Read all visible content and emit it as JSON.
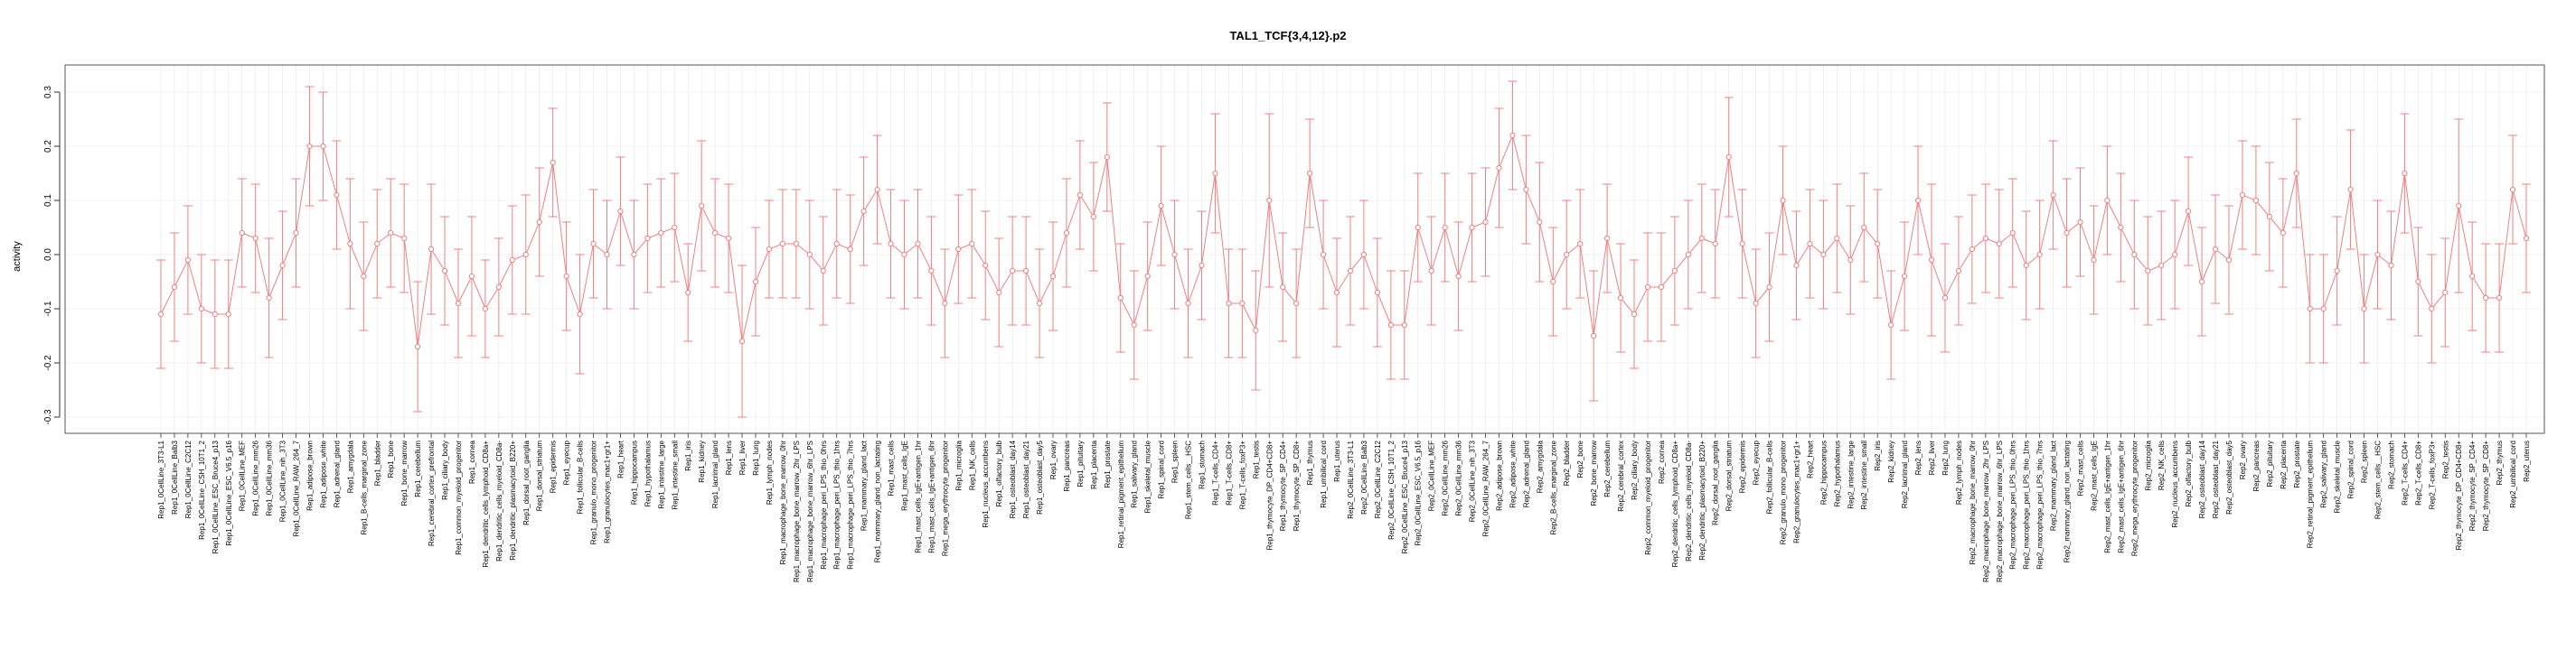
{
  "chart_data": {
    "type": "line",
    "title": "TAL1_TCF{3,4,12}.p2",
    "xlabel": "",
    "ylabel": "activity",
    "ylim": [
      -0.33,
      0.35
    ],
    "yticks": [
      -0.3,
      -0.2,
      -0.1,
      0.0,
      0.1,
      0.2,
      0.3
    ],
    "ytick_labels": [
      "-0.3",
      "-0.2",
      "-0.1",
      "0.0",
      "0.1",
      "0.2",
      "0.3"
    ],
    "grid": true,
    "error_bars": true,
    "colors": {
      "series": "#f08080",
      "frame": "#555555",
      "grid": "#e6e6e6"
    },
    "categories": [
      "Rep1_0CellLine_3T3-L1",
      "Rep1_0CellLine_Balb3",
      "Rep1_0CellLine_C2C12",
      "Rep1_0CellLine_CSH_10T1_2",
      "Rep1_0CellLine_ESC_Bruce4_p13",
      "Rep1_0CellLine_ESC_V6.5_p16",
      "Rep1_0CellLine_MEF",
      "Rep1_0CellLine_mm26",
      "Rep1_0CellLine_mm36",
      "Rep1_0CellLine_nih_3T3",
      "Rep1_0CellLine_RAW_264_7",
      "Rep1_adipose_brown",
      "Rep1_adipose_white",
      "Rep1_adrenal_gland",
      "Rep1_amygdala",
      "Rep1_B-cells_marginal_zone",
      "Rep1_bladder",
      "Rep1_bone",
      "Rep1_bone_marrow",
      "Rep1_cerebellum",
      "Rep1_cerebral_cortex_prefrontal",
      "Rep1_ciliary_body",
      "Rep1_common_myeloid_progenitor",
      "Rep1_cornea",
      "Rep1_dendritic_cells_lymphoid_CD8a+",
      "Rep1_dendritic_cells_myeloid_CD8a-",
      "Rep1_dendritic_plasmacytoid_B220+",
      "Rep1_dorsal_root_ganglia",
      "Rep1_dorsal_striatum",
      "Rep1_epidermis",
      "Rep1_eyecup",
      "Rep1_follicular_B-cells",
      "Rep1_granulo_mono_progenitor",
      "Rep1_granulocytes_mac1+gr1+",
      "Rep1_heart",
      "Rep1_hippocampus",
      "Rep1_hypothalamus",
      "Rep1_intestine_large",
      "Rep1_intestine_small",
      "Rep1_iris",
      "Rep1_kidney",
      "Rep1_lacrimal_gland",
      "Rep1_lens",
      "Rep1_liver",
      "Rep1_lung",
      "Rep1_lymph_nodes",
      "Rep1_macrophage_bone_marrow_0hr",
      "Rep1_macrophage_bone_marrow_2hr_LPS",
      "Rep1_macrophage_bone_marrow_6hr_LPS",
      "Rep1_macrophage_peri_LPS_thio_0hrs",
      "Rep1_macrophage_peri_LPS_thio_1hrs",
      "Rep1_macrophage_peri_LPS_thio_7hrs",
      "Rep1_mammary_gland_lact",
      "Rep1_mammary_gland_non_lactating",
      "Rep1_mast_cells",
      "Rep1_mast_cells_IgE",
      "Rep1_mast_cells_IgE+antigen_1hr",
      "Rep1_mast_cells_IgE+antigen_6hr",
      "Rep1_mega_erythrocyte_progenitor",
      "Rep1_microglia",
      "Rep1_NK_cells",
      "Rep1_nucleus_accumbens",
      "Rep1_olfactory_bulb",
      "Rep1_osteoblast_day14",
      "Rep1_osteoblast_day21",
      "Rep1_osteoblast_day5",
      "Rep1_ovary",
      "Rep1_pancreas",
      "Rep1_pituitary",
      "Rep1_placenta",
      "Rep1_prostate",
      "Rep1_retinal_pigment_epithelium",
      "Rep1_salivary_gland",
      "Rep1_skeletal_muscle",
      "Rep1_spinal_cord",
      "Rep1_spleen",
      "Rep1_stem_cells__HSC",
      "Rep1_stomach",
      "Rep1_T-cells_CD4+",
      "Rep1_T-cells_CD8+",
      "Rep1_T-cells_foxP3+",
      "Rep1_testis",
      "Rep1_thymocyte_DP_CD4+CD8+",
      "Rep1_thymocyte_SP_CD4+",
      "Rep1_thymocyte_SP_CD8+",
      "Rep1_thymus",
      "Rep1_umbilical_cord",
      "Rep1_uterus",
      "Rep2_0CellLine_3T3-L1",
      "Rep2_0CellLine_Balb3",
      "Rep2_0CellLine_C2C12",
      "Rep2_0CellLine_CSH_10T1_2",
      "Rep2_0CellLine_ESC_Bruce4_p13",
      "Rep2_0CellLine_ESC_V6.5_p16",
      "Rep2_0CellLine_MEF",
      "Rep2_0CellLine_mm26",
      "Rep2_0CellLine_mm36",
      "Rep2_0CellLine_nih_3T3",
      "Rep2_0CellLine_RAW_264_7",
      "Rep2_adipose_brown",
      "Rep2_adipose_white",
      "Rep2_adrenal_gland",
      "Rep2_amygdala",
      "Rep2_B-cells_marginal_zone",
      "Rep2_bladder",
      "Rep2_bone",
      "Rep2_bone_marrow",
      "Rep2_cerebellum",
      "Rep2_cerebral_cortex",
      "Rep2_ciliary_body",
      "Rep2_common_myeloid_progenitor",
      "Rep2_cornea",
      "Rep2_dendritic_cells_lymphoid_CD8a+",
      "Rep2_dendritic_cells_myeloid_CD8a-",
      "Rep2_dendritic_plasmacytoid_B220+",
      "Rep2_dorsal_root_ganglia",
      "Rep2_dorsal_striatum",
      "Rep2_epidermis",
      "Rep2_eyecup",
      "Rep2_follicular_B-cells",
      "Rep2_granulo_mono_progenitor",
      "Rep2_granulocytes_mac1+gr1+",
      "Rep2_heart",
      "Rep2_hippocampus",
      "Rep2_hypothalamus",
      "Rep2_intestine_large",
      "Rep2_intestine_small",
      "Rep2_iris",
      "Rep2_kidney",
      "Rep2_lacrimal_gland",
      "Rep2_lens",
      "Rep2_liver",
      "Rep2_lung",
      "Rep2_lymph_nodes",
      "Rep2_macrophage_bone_marrow_0hr",
      "Rep2_macrophage_bone_marrow_2hr_LPS",
      "Rep2_macrophage_bone_marrow_6hr_LPS",
      "Rep2_macrophage_peri_LPS_thio_0hrs",
      "Rep2_macrophage_peri_LPS_thio_1hrs",
      "Rep2_macrophage_peri_LPS_thio_7hrs",
      "Rep2_mammary_gland_lact",
      "Rep2_mammary_gland_non_lactating",
      "Rep2_mast_cells",
      "Rep2_mast_cells_IgE",
      "Rep2_mast_cells_IgE+antigen_1hr",
      "Rep2_mast_cells_IgE+antigen_6hr",
      "Rep2_mega_erythrocyte_progenitor",
      "Rep2_microglia",
      "Rep2_NK_cells",
      "Rep2_nucleus_accumbens",
      "Rep2_olfactory_bulb",
      "Rep2_osteoblast_day14",
      "Rep2_osteoblast_day21",
      "Rep2_osteoblast_day5",
      "Rep2_ovary",
      "Rep2_pancreas",
      "Rep2_pituitary",
      "Rep2_placenta",
      "Rep2_prostate",
      "Rep2_retinal_pigment_epithelium",
      "Rep2_salivary_gland",
      "Rep2_skeletal_muscle",
      "Rep2_spinal_cord",
      "Rep2_spleen",
      "Rep2_stem_cells__HSC",
      "Rep2_stomach",
      "Rep2_T-cells_CD4+",
      "Rep2_T-cells_CD8+",
      "Rep2_T-cells_foxP3+",
      "Rep2_testis",
      "Rep2_thymocyte_DP_CD4+CD8+",
      "Rep2_thymocyte_SP_CD4+",
      "Rep2_thymocyte_SP_CD8+",
      "Rep2_thymus",
      "Rep2_umbilical_cord",
      "Rep2_uterus"
    ],
    "series": [
      {
        "values": [
          -0.11,
          -0.06,
          -0.01,
          -0.1,
          -0.11,
          -0.11,
          0.04,
          0.03,
          -0.08,
          -0.02,
          0.04,
          0.2,
          0.2,
          0.11,
          0.02,
          -0.04,
          0.02,
          0.04,
          0.03,
          -0.17,
          0.01,
          -0.03,
          -0.09,
          -0.04,
          -0.1,
          -0.06,
          -0.01,
          0.0,
          0.06,
          0.17,
          -0.04,
          -0.11,
          0.02,
          0.0,
          0.08,
          0.0,
          0.03,
          0.04,
          0.05,
          -0.07,
          0.09,
          0.04,
          0.03,
          -0.16,
          -0.05,
          0.01,
          0.02,
          0.02,
          0.0,
          -0.03,
          0.02,
          0.01,
          0.08,
          0.12,
          0.02,
          0.0,
          0.02,
          -0.03,
          -0.09,
          0.01,
          0.02,
          -0.02,
          -0.07,
          -0.03,
          -0.03,
          -0.09,
          -0.04,
          0.04,
          0.11,
          0.07,
          0.18,
          -0.08,
          -0.13,
          -0.04,
          0.09,
          0.0,
          -0.09,
          -0.02,
          0.15,
          -0.09,
          -0.09,
          -0.14,
          0.1,
          -0.06,
          -0.09,
          0.15,
          0.0,
          -0.07,
          -0.03,
          0.0,
          -0.07,
          -0.13,
          -0.13,
          0.05,
          -0.03,
          0.05,
          -0.04,
          0.05,
          0.06,
          0.16,
          0.22,
          0.12,
          0.06,
          -0.05,
          0.0,
          0.02,
          -0.15,
          0.03,
          -0.08,
          -0.11,
          -0.06,
          -0.06,
          -0.03,
          0.0,
          0.03,
          0.02,
          0.18,
          0.02,
          -0.09,
          -0.06,
          0.1,
          -0.02,
          0.02,
          0.0,
          0.03,
          -0.01,
          0.05,
          0.02,
          -0.13,
          -0.04,
          0.1,
          -0.01,
          -0.08,
          -0.03,
          0.01,
          0.03,
          0.02,
          0.04,
          -0.02,
          0.0,
          0.11,
          0.04,
          0.06,
          -0.01,
          0.1,
          0.05,
          0.0,
          -0.03,
          -0.02,
          0.0,
          0.08,
          -0.05,
          0.01,
          -0.01,
          0.11,
          0.1,
          0.07,
          0.04,
          0.15,
          -0.1,
          -0.1,
          -0.03,
          0.12,
          -0.1,
          0.0,
          -0.02,
          0.15,
          -0.05,
          -0.1,
          -0.07,
          0.09,
          -0.04,
          -0.08,
          -0.08,
          0.12,
          0.03
        ],
        "error": [
          0.1,
          0.1,
          0.1,
          0.1,
          0.1,
          0.1,
          0.1,
          0.1,
          0.11,
          0.1,
          0.1,
          0.11,
          0.1,
          0.1,
          0.12,
          0.1,
          0.1,
          0.1,
          0.1,
          0.12,
          0.12,
          0.1,
          0.1,
          0.11,
          0.09,
          0.09,
          0.1,
          0.11,
          0.1,
          0.1,
          0.1,
          0.11,
          0.1,
          0.1,
          0.1,
          0.1,
          0.1,
          0.1,
          0.1,
          0.09,
          0.12,
          0.1,
          0.1,
          0.14,
          0.1,
          0.09,
          0.1,
          0.1,
          0.1,
          0.1,
          0.1,
          0.1,
          0.1,
          0.1,
          0.1,
          0.1,
          0.1,
          0.1,
          0.1,
          0.1,
          0.1,
          0.1,
          0.1,
          0.1,
          0.1,
          0.1,
          0.1,
          0.1,
          0.1,
          0.1,
          0.1,
          0.1,
          0.1,
          0.1,
          0.11,
          0.1,
          0.1,
          0.1,
          0.11,
          0.1,
          0.1,
          0.11,
          0.16,
          0.1,
          0.1,
          0.1,
          0.1,
          0.1,
          0.1,
          0.1,
          0.1,
          0.1,
          0.1,
          0.1,
          0.1,
          0.1,
          0.1,
          0.1,
          0.1,
          0.11,
          0.1,
          0.1,
          0.11,
          0.1,
          0.1,
          0.1,
          0.12,
          0.1,
          0.1,
          0.1,
          0.1,
          0.1,
          0.1,
          0.1,
          0.1,
          0.1,
          0.11,
          0.1,
          0.1,
          0.1,
          0.1,
          0.1,
          0.1,
          0.1,
          0.1,
          0.1,
          0.1,
          0.1,
          0.1,
          0.1,
          0.1,
          0.14,
          0.1,
          0.1,
          0.1,
          0.1,
          0.1,
          0.1,
          0.1,
          0.1,
          0.1,
          0.1,
          0.1,
          0.1,
          0.1,
          0.1,
          0.1,
          0.1,
          0.1,
          0.1,
          0.1,
          0.1,
          0.1,
          0.1,
          0.1,
          0.1,
          0.1,
          0.1,
          0.1,
          0.1,
          0.1,
          0.1,
          0.11,
          0.1,
          0.1,
          0.1,
          0.11,
          0.1,
          0.1,
          0.1,
          0.16,
          0.1,
          0.1,
          0.1,
          0.1,
          0.1
        ]
      }
    ]
  }
}
